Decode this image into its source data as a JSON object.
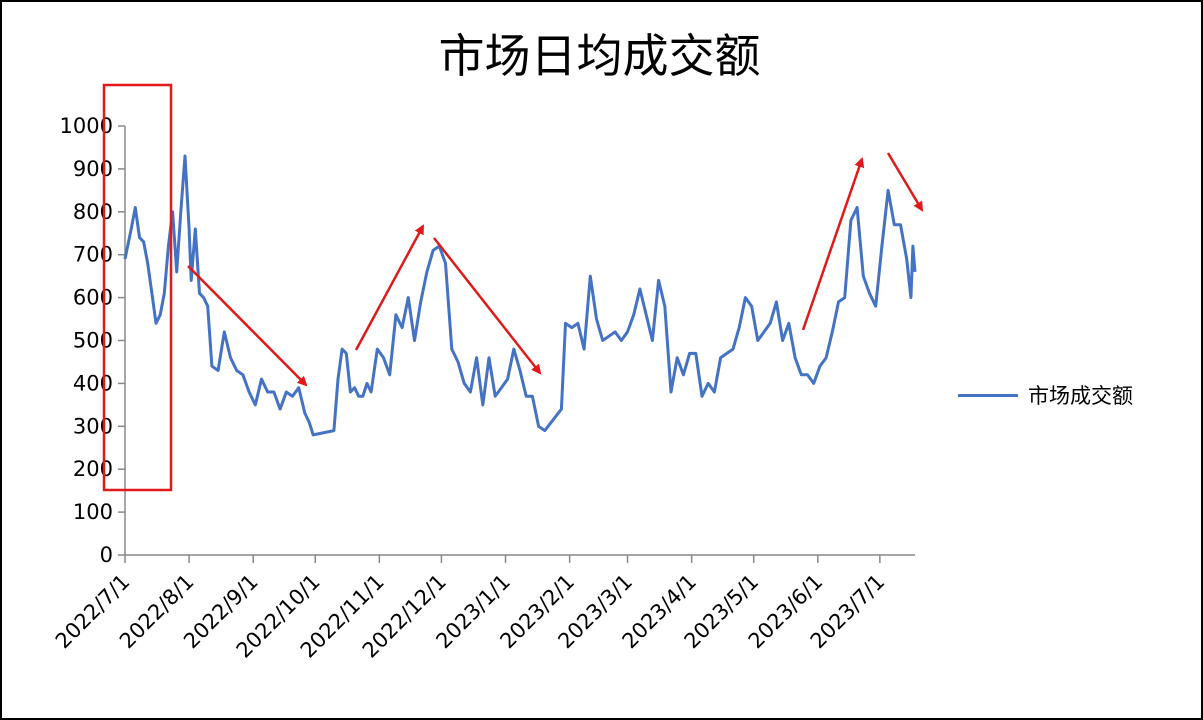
{
  "chart_data": {
    "type": "line",
    "title": "市场日均成交额",
    "xlabel": "",
    "ylabel": "",
    "ylim": [
      0,
      1000
    ],
    "yticks": [
      0,
      100,
      200,
      300,
      400,
      500,
      600,
      700,
      800,
      900,
      1000
    ],
    "xticks": [
      "2022/7/1",
      "2022/8/1",
      "2022/9/1",
      "2022/10/1",
      "2022/11/1",
      "2022/12/1",
      "2023/1/1",
      "2023/2/1",
      "2023/3/1",
      "2023/4/1",
      "2023/5/1",
      "2023/6/1",
      "2023/7/1"
    ],
    "legend_position": "right",
    "series": [
      {
        "name": "市场成交额",
        "color": "#4472C4",
        "x": [
          "2022-07-01",
          "2022-07-04",
          "2022-07-06",
          "2022-07-08",
          "2022-07-10",
          "2022-07-12",
          "2022-07-14",
          "2022-07-16",
          "2022-07-18",
          "2022-07-20",
          "2022-07-22",
          "2022-07-24",
          "2022-07-26",
          "2022-07-28",
          "2022-07-30",
          "2022-08-01",
          "2022-08-02",
          "2022-08-04",
          "2022-08-06",
          "2022-08-08",
          "2022-08-10",
          "2022-08-12",
          "2022-08-15",
          "2022-08-18",
          "2022-08-21",
          "2022-08-24",
          "2022-08-27",
          "2022-08-30",
          "2022-09-02",
          "2022-09-05",
          "2022-09-08",
          "2022-09-11",
          "2022-09-14",
          "2022-09-17",
          "2022-09-20",
          "2022-09-23",
          "2022-09-26",
          "2022-09-28",
          "2022-09-30",
          "2022-10-10",
          "2022-10-12",
          "2022-10-14",
          "2022-10-16",
          "2022-10-18",
          "2022-10-20",
          "2022-10-22",
          "2022-10-24",
          "2022-10-26",
          "2022-10-28",
          "2022-10-31",
          "2022-11-03",
          "2022-11-06",
          "2022-11-09",
          "2022-11-12",
          "2022-11-15",
          "2022-11-18",
          "2022-11-21",
          "2022-11-24",
          "2022-11-27",
          "2022-11-30",
          "2022-12-03",
          "2022-12-06",
          "2022-12-09",
          "2022-12-12",
          "2022-12-15",
          "2022-12-18",
          "2022-12-21",
          "2022-12-24",
          "2022-12-27",
          "2022-12-30",
          "2023-01-02",
          "2023-01-05",
          "2023-01-08",
          "2023-01-11",
          "2023-01-14",
          "2023-01-17",
          "2023-01-20",
          "2023-01-28",
          "2023-01-30",
          "2023-02-02",
          "2023-02-05",
          "2023-02-08",
          "2023-02-11",
          "2023-02-14",
          "2023-02-17",
          "2023-02-20",
          "2023-02-23",
          "2023-02-26",
          "2023-03-01",
          "2023-03-04",
          "2023-03-07",
          "2023-03-10",
          "2023-03-13",
          "2023-03-16",
          "2023-03-19",
          "2023-03-22",
          "2023-03-25",
          "2023-03-28",
          "2023-03-31",
          "2023-04-03",
          "2023-04-06",
          "2023-04-09",
          "2023-04-12",
          "2023-04-15",
          "2023-04-18",
          "2023-04-21",
          "2023-04-24",
          "2023-04-27",
          "2023-04-30",
          "2023-05-03",
          "2023-05-06",
          "2023-05-09",
          "2023-05-12",
          "2023-05-15",
          "2023-05-18",
          "2023-05-21",
          "2023-05-24",
          "2023-05-27",
          "2023-05-30",
          "2023-06-02",
          "2023-06-05",
          "2023-06-08",
          "2023-06-11",
          "2023-06-14",
          "2023-06-17",
          "2023-06-20",
          "2023-06-23",
          "2023-06-26",
          "2023-06-29",
          "2023-07-02",
          "2023-07-05",
          "2023-07-08",
          "2023-07-11",
          "2023-07-14",
          "2023-07-16",
          "2023-07-17",
          "2023-07-18"
        ],
        "values": [
          690,
          760,
          810,
          740,
          730,
          680,
          610,
          540,
          560,
          610,
          720,
          800,
          660,
          800,
          930,
          760,
          640,
          760,
          610,
          600,
          580,
          440,
          430,
          520,
          460,
          430,
          420,
          380,
          350,
          410,
          380,
          380,
          340,
          380,
          370,
          390,
          330,
          310,
          280,
          290,
          410,
          480,
          470,
          380,
          390,
          370,
          370,
          400,
          380,
          480,
          460,
          420,
          560,
          530,
          600,
          500,
          590,
          660,
          710,
          720,
          680,
          480,
          450,
          400,
          380,
          460,
          350,
          460,
          370,
          390,
          410,
          480,
          430,
          370,
          370,
          300,
          290,
          340,
          540,
          530,
          540,
          480,
          650,
          550,
          500,
          510,
          520,
          500,
          520,
          560,
          620,
          560,
          500,
          640,
          580,
          380,
          460,
          420,
          470,
          470,
          370,
          400,
          380,
          460,
          470,
          480,
          530,
          600,
          580,
          500,
          520,
          540,
          590,
          500,
          540,
          460,
          420,
          420,
          400,
          440,
          460,
          520,
          590,
          600,
          780,
          810,
          650,
          610,
          580,
          720,
          850,
          770,
          770,
          690,
          600,
          720,
          660
        ]
      }
    ]
  },
  "annotations": {
    "highlight_box_color": "#E0191A",
    "arrow_color": "#E0191A"
  }
}
